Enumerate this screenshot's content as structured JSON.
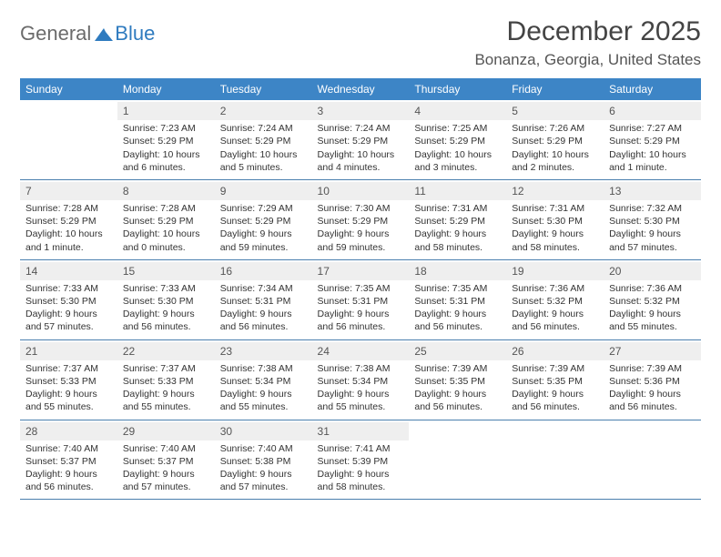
{
  "logo": {
    "general": "General",
    "blue": "Blue"
  },
  "header": {
    "month_title": "December 2025",
    "location": "Bonanza, Georgia, United States"
  },
  "colors": {
    "header_bg": "#3d85c6",
    "header_text": "#ffffff",
    "daynum_bg": "#efefef",
    "row_border": "#4a7fae",
    "logo_blue": "#2f7bbf",
    "logo_gray": "#6b6b6b"
  },
  "days_of_week": [
    "Sunday",
    "Monday",
    "Tuesday",
    "Wednesday",
    "Thursday",
    "Friday",
    "Saturday"
  ],
  "calendar": {
    "start_day_index": 1,
    "days": [
      {
        "n": 1,
        "sunrise": "7:23 AM",
        "sunset": "5:29 PM",
        "daylight": "10 hours and 6 minutes."
      },
      {
        "n": 2,
        "sunrise": "7:24 AM",
        "sunset": "5:29 PM",
        "daylight": "10 hours and 5 minutes."
      },
      {
        "n": 3,
        "sunrise": "7:24 AM",
        "sunset": "5:29 PM",
        "daylight": "10 hours and 4 minutes."
      },
      {
        "n": 4,
        "sunrise": "7:25 AM",
        "sunset": "5:29 PM",
        "daylight": "10 hours and 3 minutes."
      },
      {
        "n": 5,
        "sunrise": "7:26 AM",
        "sunset": "5:29 PM",
        "daylight": "10 hours and 2 minutes."
      },
      {
        "n": 6,
        "sunrise": "7:27 AM",
        "sunset": "5:29 PM",
        "daylight": "10 hours and 1 minute."
      },
      {
        "n": 7,
        "sunrise": "7:28 AM",
        "sunset": "5:29 PM",
        "daylight": "10 hours and 1 minute."
      },
      {
        "n": 8,
        "sunrise": "7:28 AM",
        "sunset": "5:29 PM",
        "daylight": "10 hours and 0 minutes."
      },
      {
        "n": 9,
        "sunrise": "7:29 AM",
        "sunset": "5:29 PM",
        "daylight": "9 hours and 59 minutes."
      },
      {
        "n": 10,
        "sunrise": "7:30 AM",
        "sunset": "5:29 PM",
        "daylight": "9 hours and 59 minutes."
      },
      {
        "n": 11,
        "sunrise": "7:31 AM",
        "sunset": "5:29 PM",
        "daylight": "9 hours and 58 minutes."
      },
      {
        "n": 12,
        "sunrise": "7:31 AM",
        "sunset": "5:30 PM",
        "daylight": "9 hours and 58 minutes."
      },
      {
        "n": 13,
        "sunrise": "7:32 AM",
        "sunset": "5:30 PM",
        "daylight": "9 hours and 57 minutes."
      },
      {
        "n": 14,
        "sunrise": "7:33 AM",
        "sunset": "5:30 PM",
        "daylight": "9 hours and 57 minutes."
      },
      {
        "n": 15,
        "sunrise": "7:33 AM",
        "sunset": "5:30 PM",
        "daylight": "9 hours and 56 minutes."
      },
      {
        "n": 16,
        "sunrise": "7:34 AM",
        "sunset": "5:31 PM",
        "daylight": "9 hours and 56 minutes."
      },
      {
        "n": 17,
        "sunrise": "7:35 AM",
        "sunset": "5:31 PM",
        "daylight": "9 hours and 56 minutes."
      },
      {
        "n": 18,
        "sunrise": "7:35 AM",
        "sunset": "5:31 PM",
        "daylight": "9 hours and 56 minutes."
      },
      {
        "n": 19,
        "sunrise": "7:36 AM",
        "sunset": "5:32 PM",
        "daylight": "9 hours and 56 minutes."
      },
      {
        "n": 20,
        "sunrise": "7:36 AM",
        "sunset": "5:32 PM",
        "daylight": "9 hours and 55 minutes."
      },
      {
        "n": 21,
        "sunrise": "7:37 AM",
        "sunset": "5:33 PM",
        "daylight": "9 hours and 55 minutes."
      },
      {
        "n": 22,
        "sunrise": "7:37 AM",
        "sunset": "5:33 PM",
        "daylight": "9 hours and 55 minutes."
      },
      {
        "n": 23,
        "sunrise": "7:38 AM",
        "sunset": "5:34 PM",
        "daylight": "9 hours and 55 minutes."
      },
      {
        "n": 24,
        "sunrise": "7:38 AM",
        "sunset": "5:34 PM",
        "daylight": "9 hours and 55 minutes."
      },
      {
        "n": 25,
        "sunrise": "7:39 AM",
        "sunset": "5:35 PM",
        "daylight": "9 hours and 56 minutes."
      },
      {
        "n": 26,
        "sunrise": "7:39 AM",
        "sunset": "5:35 PM",
        "daylight": "9 hours and 56 minutes."
      },
      {
        "n": 27,
        "sunrise": "7:39 AM",
        "sunset": "5:36 PM",
        "daylight": "9 hours and 56 minutes."
      },
      {
        "n": 28,
        "sunrise": "7:40 AM",
        "sunset": "5:37 PM",
        "daylight": "9 hours and 56 minutes."
      },
      {
        "n": 29,
        "sunrise": "7:40 AM",
        "sunset": "5:37 PM",
        "daylight": "9 hours and 57 minutes."
      },
      {
        "n": 30,
        "sunrise": "7:40 AM",
        "sunset": "5:38 PM",
        "daylight": "9 hours and 57 minutes."
      },
      {
        "n": 31,
        "sunrise": "7:41 AM",
        "sunset": "5:39 PM",
        "daylight": "9 hours and 58 minutes."
      }
    ]
  },
  "labels": {
    "sunrise_prefix": "Sunrise: ",
    "sunset_prefix": "Sunset: ",
    "daylight_prefix": "Daylight: "
  }
}
